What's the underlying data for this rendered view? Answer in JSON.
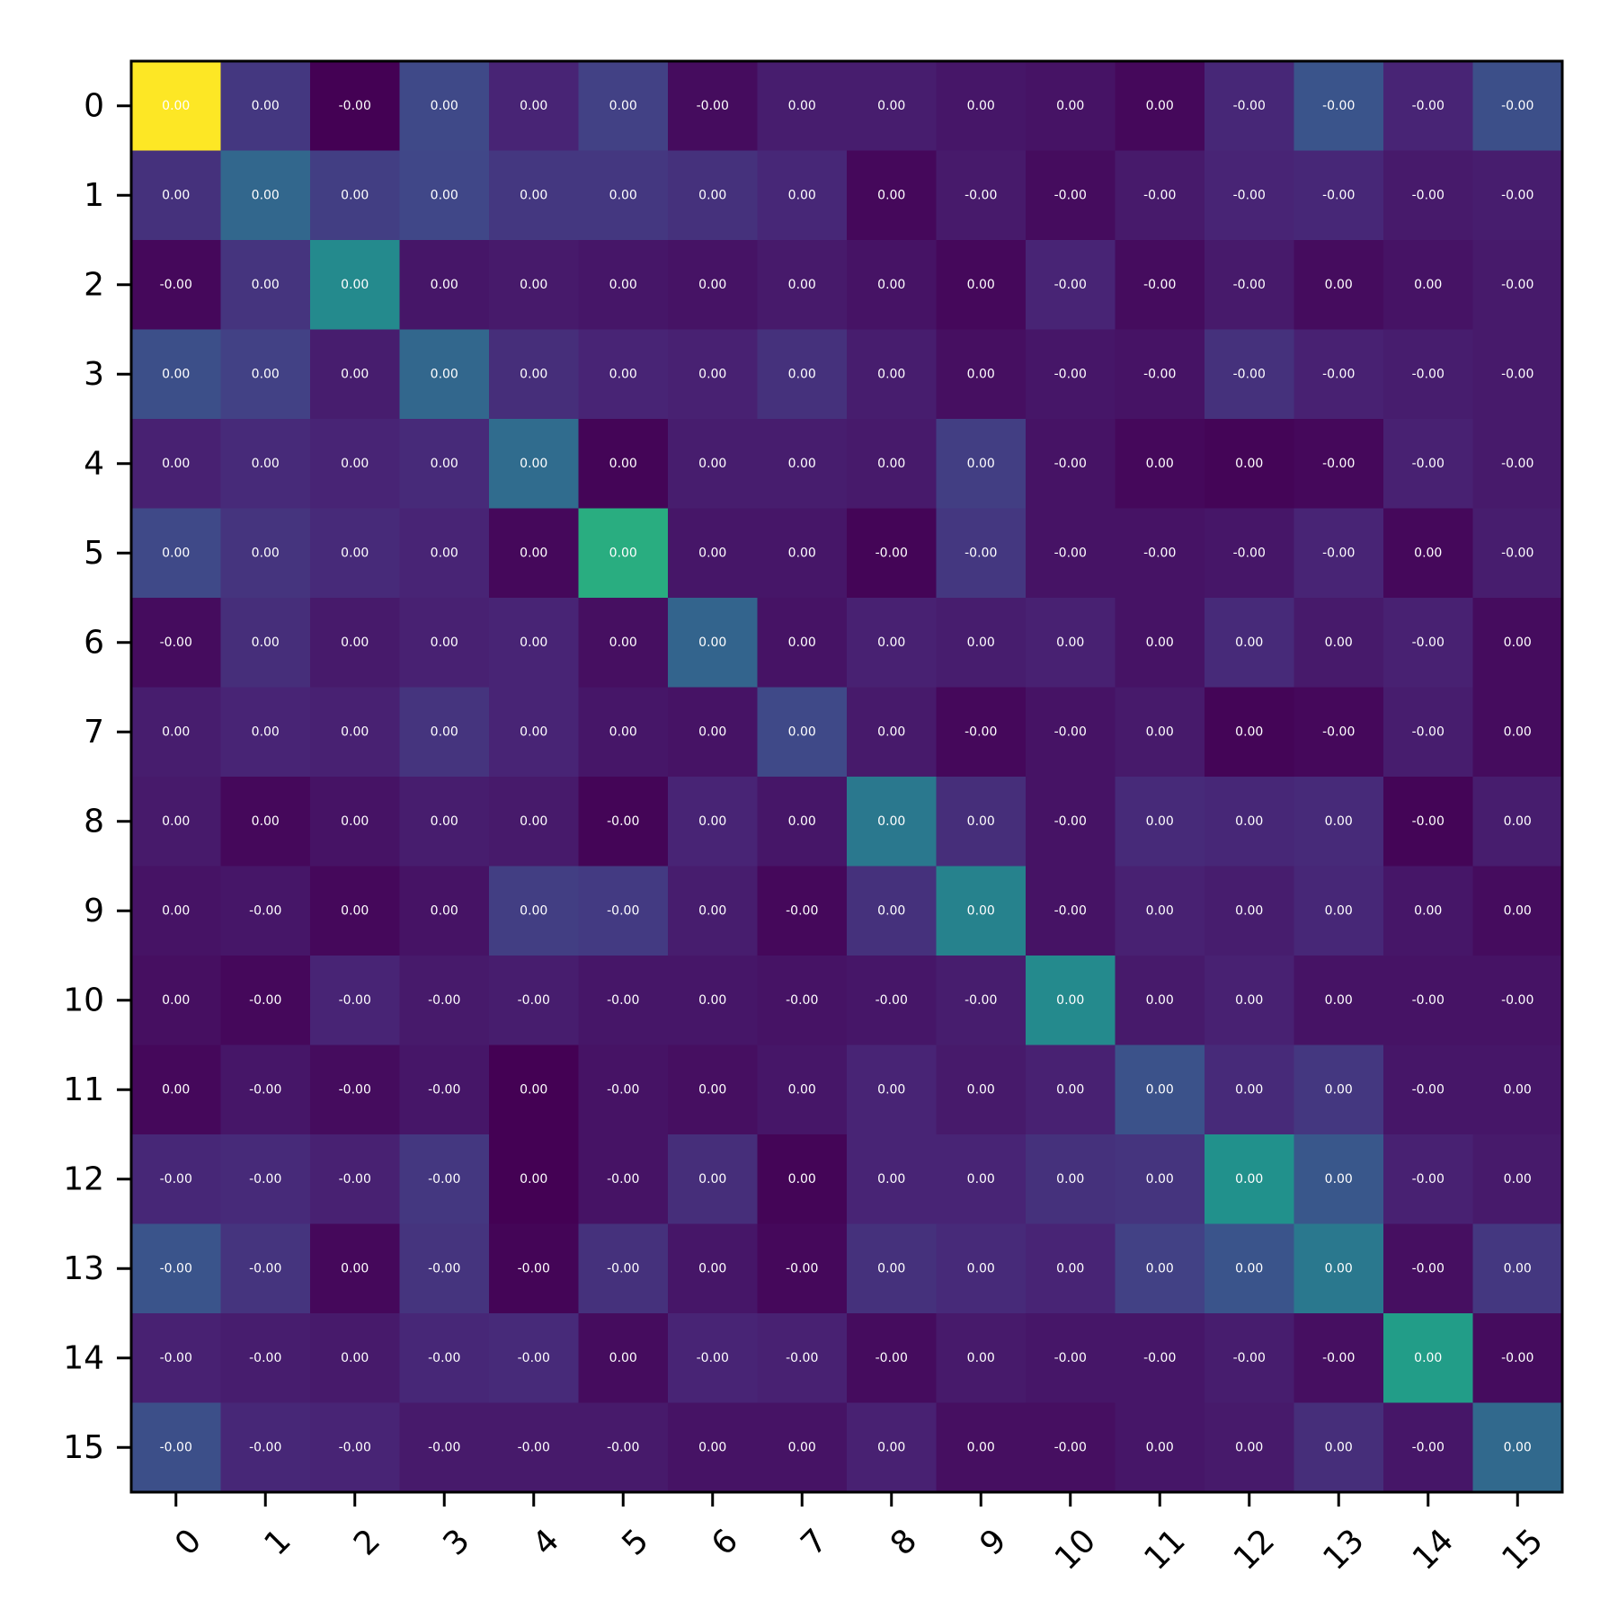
{
  "chart_data": {
    "type": "heatmap",
    "title": "",
    "xlabel": "",
    "ylabel": "",
    "x_categories": [
      "0",
      "1",
      "2",
      "3",
      "4",
      "5",
      "6",
      "7",
      "8",
      "9",
      "10",
      "11",
      "12",
      "13",
      "14",
      "15"
    ],
    "y_categories": [
      "0",
      "1",
      "2",
      "3",
      "4",
      "5",
      "6",
      "7",
      "8",
      "9",
      "10",
      "11",
      "12",
      "13",
      "14",
      "15"
    ],
    "colormap": "viridis",
    "value_range": [
      0,
      1
    ],
    "intensity": [
      [
        1.0,
        0.16,
        0.0,
        0.22,
        0.1,
        0.19,
        0.03,
        0.08,
        0.08,
        0.06,
        0.05,
        0.02,
        0.11,
        0.26,
        0.1,
        0.24
      ],
      [
        0.14,
        0.33,
        0.18,
        0.21,
        0.16,
        0.16,
        0.14,
        0.11,
        0.02,
        0.07,
        0.03,
        0.07,
        0.1,
        0.11,
        0.07,
        0.08
      ],
      [
        0.02,
        0.15,
        0.47,
        0.06,
        0.07,
        0.06,
        0.05,
        0.07,
        0.05,
        0.02,
        0.1,
        0.03,
        0.07,
        0.03,
        0.05,
        0.07
      ],
      [
        0.24,
        0.19,
        0.08,
        0.33,
        0.13,
        0.1,
        0.09,
        0.14,
        0.08,
        0.04,
        0.06,
        0.05,
        0.14,
        0.09,
        0.08,
        0.07
      ],
      [
        0.09,
        0.12,
        0.1,
        0.12,
        0.35,
        0.01,
        0.08,
        0.08,
        0.07,
        0.18,
        0.05,
        0.02,
        0.01,
        0.02,
        0.09,
        0.07
      ],
      [
        0.22,
        0.15,
        0.12,
        0.1,
        0.02,
        0.62,
        0.06,
        0.06,
        0.01,
        0.16,
        0.05,
        0.05,
        0.06,
        0.1,
        0.02,
        0.08
      ],
      [
        0.03,
        0.13,
        0.07,
        0.09,
        0.1,
        0.04,
        0.32,
        0.05,
        0.09,
        0.08,
        0.09,
        0.05,
        0.12,
        0.07,
        0.09,
        0.03
      ],
      [
        0.08,
        0.1,
        0.09,
        0.15,
        0.1,
        0.06,
        0.05,
        0.22,
        0.07,
        0.02,
        0.05,
        0.07,
        0.01,
        0.02,
        0.08,
        0.03
      ],
      [
        0.07,
        0.02,
        0.05,
        0.08,
        0.07,
        0.01,
        0.1,
        0.06,
        0.4,
        0.13,
        0.05,
        0.12,
        0.11,
        0.12,
        0.01,
        0.08
      ],
      [
        0.05,
        0.06,
        0.02,
        0.05,
        0.18,
        0.17,
        0.08,
        0.02,
        0.14,
        0.44,
        0.05,
        0.09,
        0.08,
        0.11,
        0.06,
        0.03
      ],
      [
        0.04,
        0.02,
        0.1,
        0.07,
        0.08,
        0.06,
        0.06,
        0.05,
        0.06,
        0.08,
        0.47,
        0.07,
        0.09,
        0.05,
        0.05,
        0.05
      ],
      [
        0.02,
        0.06,
        0.03,
        0.06,
        0.0,
        0.05,
        0.04,
        0.06,
        0.1,
        0.07,
        0.09,
        0.25,
        0.12,
        0.16,
        0.06,
        0.06
      ],
      [
        0.11,
        0.12,
        0.09,
        0.16,
        0.0,
        0.05,
        0.13,
        0.01,
        0.1,
        0.1,
        0.14,
        0.15,
        0.5,
        0.27,
        0.09,
        0.07
      ],
      [
        0.26,
        0.15,
        0.02,
        0.15,
        0.01,
        0.14,
        0.06,
        0.02,
        0.14,
        0.12,
        0.1,
        0.19,
        0.26,
        0.4,
        0.04,
        0.16
      ],
      [
        0.09,
        0.08,
        0.07,
        0.11,
        0.12,
        0.03,
        0.1,
        0.09,
        0.03,
        0.07,
        0.06,
        0.06,
        0.08,
        0.04,
        0.55,
        0.03
      ],
      [
        0.24,
        0.11,
        0.1,
        0.07,
        0.07,
        0.07,
        0.05,
        0.05,
        0.09,
        0.04,
        0.04,
        0.06,
        0.07,
        0.13,
        0.06,
        0.34
      ]
    ],
    "labels": [
      [
        "0.00",
        "0.00",
        "-0.00",
        "0.00",
        "0.00",
        "0.00",
        "-0.00",
        "0.00",
        "0.00",
        "0.00",
        "0.00",
        "0.00",
        "-0.00",
        "-0.00",
        "-0.00",
        "-0.00"
      ],
      [
        "0.00",
        "0.00",
        "0.00",
        "0.00",
        "0.00",
        "0.00",
        "0.00",
        "0.00",
        "0.00",
        "-0.00",
        "-0.00",
        "-0.00",
        "-0.00",
        "-0.00",
        "-0.00",
        "-0.00"
      ],
      [
        "-0.00",
        "0.00",
        "0.00",
        "0.00",
        "0.00",
        "0.00",
        "0.00",
        "0.00",
        "0.00",
        "0.00",
        "-0.00",
        "-0.00",
        "-0.00",
        "0.00",
        "0.00",
        "-0.00"
      ],
      [
        "0.00",
        "0.00",
        "0.00",
        "0.00",
        "0.00",
        "0.00",
        "0.00",
        "0.00",
        "0.00",
        "0.00",
        "-0.00",
        "-0.00",
        "-0.00",
        "-0.00",
        "-0.00",
        "-0.00"
      ],
      [
        "0.00",
        "0.00",
        "0.00",
        "0.00",
        "0.00",
        "0.00",
        "0.00",
        "0.00",
        "0.00",
        "0.00",
        "-0.00",
        "0.00",
        "0.00",
        "-0.00",
        "-0.00",
        "-0.00"
      ],
      [
        "0.00",
        "0.00",
        "0.00",
        "0.00",
        "0.00",
        "0.00",
        "0.00",
        "0.00",
        "-0.00",
        "-0.00",
        "-0.00",
        "-0.00",
        "-0.00",
        "-0.00",
        "0.00",
        "-0.00"
      ],
      [
        "-0.00",
        "0.00",
        "0.00",
        "0.00",
        "0.00",
        "0.00",
        "0.00",
        "0.00",
        "0.00",
        "0.00",
        "0.00",
        "0.00",
        "0.00",
        "0.00",
        "-0.00",
        "0.00"
      ],
      [
        "0.00",
        "0.00",
        "0.00",
        "0.00",
        "0.00",
        "0.00",
        "0.00",
        "0.00",
        "0.00",
        "-0.00",
        "-0.00",
        "0.00",
        "0.00",
        "-0.00",
        "-0.00",
        "0.00"
      ],
      [
        "0.00",
        "0.00",
        "0.00",
        "0.00",
        "0.00",
        "-0.00",
        "0.00",
        "0.00",
        "0.00",
        "0.00",
        "-0.00",
        "0.00",
        "0.00",
        "0.00",
        "-0.00",
        "0.00"
      ],
      [
        "0.00",
        "-0.00",
        "0.00",
        "0.00",
        "0.00",
        "-0.00",
        "0.00",
        "-0.00",
        "0.00",
        "0.00",
        "-0.00",
        "0.00",
        "0.00",
        "0.00",
        "0.00",
        "0.00"
      ],
      [
        "0.00",
        "-0.00",
        "-0.00",
        "-0.00",
        "-0.00",
        "-0.00",
        "0.00",
        "-0.00",
        "-0.00",
        "-0.00",
        "0.00",
        "0.00",
        "0.00",
        "0.00",
        "-0.00",
        "-0.00"
      ],
      [
        "0.00",
        "-0.00",
        "-0.00",
        "-0.00",
        "0.00",
        "-0.00",
        "0.00",
        "0.00",
        "0.00",
        "0.00",
        "0.00",
        "0.00",
        "0.00",
        "0.00",
        "-0.00",
        "0.00"
      ],
      [
        "-0.00",
        "-0.00",
        "-0.00",
        "-0.00",
        "0.00",
        "-0.00",
        "0.00",
        "0.00",
        "0.00",
        "0.00",
        "0.00",
        "0.00",
        "0.00",
        "0.00",
        "-0.00",
        "0.00"
      ],
      [
        "-0.00",
        "-0.00",
        "0.00",
        "-0.00",
        "-0.00",
        "-0.00",
        "0.00",
        "-0.00",
        "0.00",
        "0.00",
        "0.00",
        "0.00",
        "0.00",
        "0.00",
        "-0.00",
        "0.00"
      ],
      [
        "-0.00",
        "-0.00",
        "0.00",
        "-0.00",
        "-0.00",
        "0.00",
        "-0.00",
        "-0.00",
        "-0.00",
        "0.00",
        "-0.00",
        "-0.00",
        "-0.00",
        "-0.00",
        "0.00",
        "-0.00"
      ],
      [
        "-0.00",
        "-0.00",
        "-0.00",
        "-0.00",
        "-0.00",
        "-0.00",
        "0.00",
        "0.00",
        "0.00",
        "0.00",
        "-0.00",
        "0.00",
        "0.00",
        "0.00",
        "-0.00",
        "0.00"
      ]
    ],
    "label_color": "#ffffff",
    "diagonal_top_label_color": "#ffffff",
    "grid": false,
    "legend": "none"
  }
}
